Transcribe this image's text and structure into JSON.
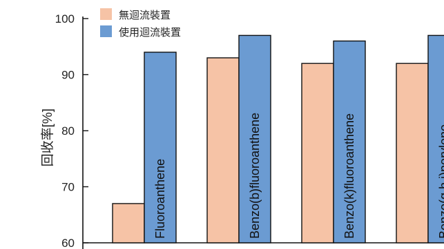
{
  "chart_data": {
    "type": "bar",
    "ylabel": "回收率[%]",
    "xlabel": "",
    "ylim": [
      60,
      100
    ],
    "yticks": [
      60,
      70,
      80,
      90,
      100
    ],
    "categories": [
      "Fluoroanthene",
      "Benzo(b)fluoroanthene",
      "Benzo(k)fluoroanthene",
      "Benzo(g,h,i)perylene"
    ],
    "series": [
      {
        "name": "無迴流裝置",
        "color": "#f6c3a6",
        "values": [
          67,
          93,
          92,
          92
        ]
      },
      {
        "name": "使用迴流裝置",
        "color": "#6b9bd2",
        "values": [
          94,
          97,
          96,
          97
        ]
      }
    ],
    "legend_position": "top-left",
    "grid": false
  }
}
